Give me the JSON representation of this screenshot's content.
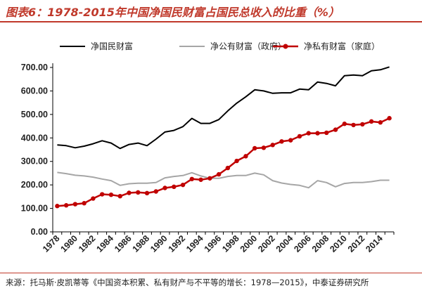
{
  "title": "图表6：1978-2015年中国净国民财富占国民总收入的比重（%）",
  "source": "来源：托马斯·皮凯蒂等《中国资本积累、私有财产与不平等的增长：1978—2015》，中泰证券研究所",
  "colors": {
    "accent": "#c0392b",
    "national": "#000000",
    "public": "#a6a6a6",
    "private": "#c00000"
  },
  "chart_data": {
    "type": "line",
    "title": "图表6：1978-2015年中国净国民财富占国民总收入的比重（%）",
    "xlabel": "",
    "ylabel": "",
    "ylim": [
      0,
      700
    ],
    "yticks": [
      0,
      100,
      200,
      300,
      400,
      500,
      600,
      700
    ],
    "ytick_labels": [
      "0.00",
      "100.00",
      "200.00",
      "300.00",
      "400.00",
      "500.00",
      "600.00",
      "700.00"
    ],
    "xticks": [
      1978,
      1980,
      1982,
      1984,
      1986,
      1988,
      1990,
      1992,
      1994,
      1996,
      1998,
      2000,
      2002,
      2004,
      2006,
      2008,
      2010,
      2012,
      2014
    ],
    "legend_position": "top",
    "grid": false,
    "x": [
      1978,
      1979,
      1980,
      1981,
      1982,
      1983,
      1984,
      1985,
      1986,
      1987,
      1988,
      1989,
      1990,
      1991,
      1992,
      1993,
      1994,
      1995,
      1996,
      1997,
      1998,
      1999,
      2000,
      2001,
      2002,
      2003,
      2004,
      2005,
      2006,
      2007,
      2008,
      2009,
      2010,
      2011,
      2012,
      2013,
      2014,
      2015
    ],
    "series": [
      {
        "name": "净国民财富",
        "color": "#000000",
        "marker": false,
        "values": [
          370,
          367,
          358,
          365,
          375,
          388,
          378,
          355,
          372,
          378,
          367,
          395,
          425,
          432,
          448,
          483,
          462,
          462,
          478,
          515,
          548,
          575,
          605,
          600,
          590,
          592,
          592,
          608,
          605,
          638,
          632,
          622,
          665,
          668,
          665,
          686,
          690,
          702
        ]
      },
      {
        "name": "净公有财富（政府）",
        "color": "#a6a6a6",
        "marker": false,
        "values": [
          253,
          248,
          241,
          238,
          233,
          225,
          218,
          198,
          205,
          207,
          207,
          210,
          230,
          236,
          240,
          252,
          238,
          228,
          228,
          236,
          240,
          240,
          250,
          243,
          218,
          208,
          202,
          198,
          188,
          218,
          210,
          192,
          206,
          210,
          210,
          214,
          220,
          220
        ]
      },
      {
        "name": "净私有财富（家庭）",
        "color": "#c00000",
        "marker": true,
        "values": [
          110,
          113,
          118,
          122,
          142,
          160,
          158,
          152,
          166,
          168,
          165,
          172,
          187,
          192,
          200,
          225,
          222,
          228,
          245,
          272,
          302,
          322,
          356,
          358,
          370,
          385,
          390,
          407,
          420,
          420,
          422,
          435,
          460,
          455,
          458,
          470,
          466,
          484
        ]
      }
    ]
  }
}
